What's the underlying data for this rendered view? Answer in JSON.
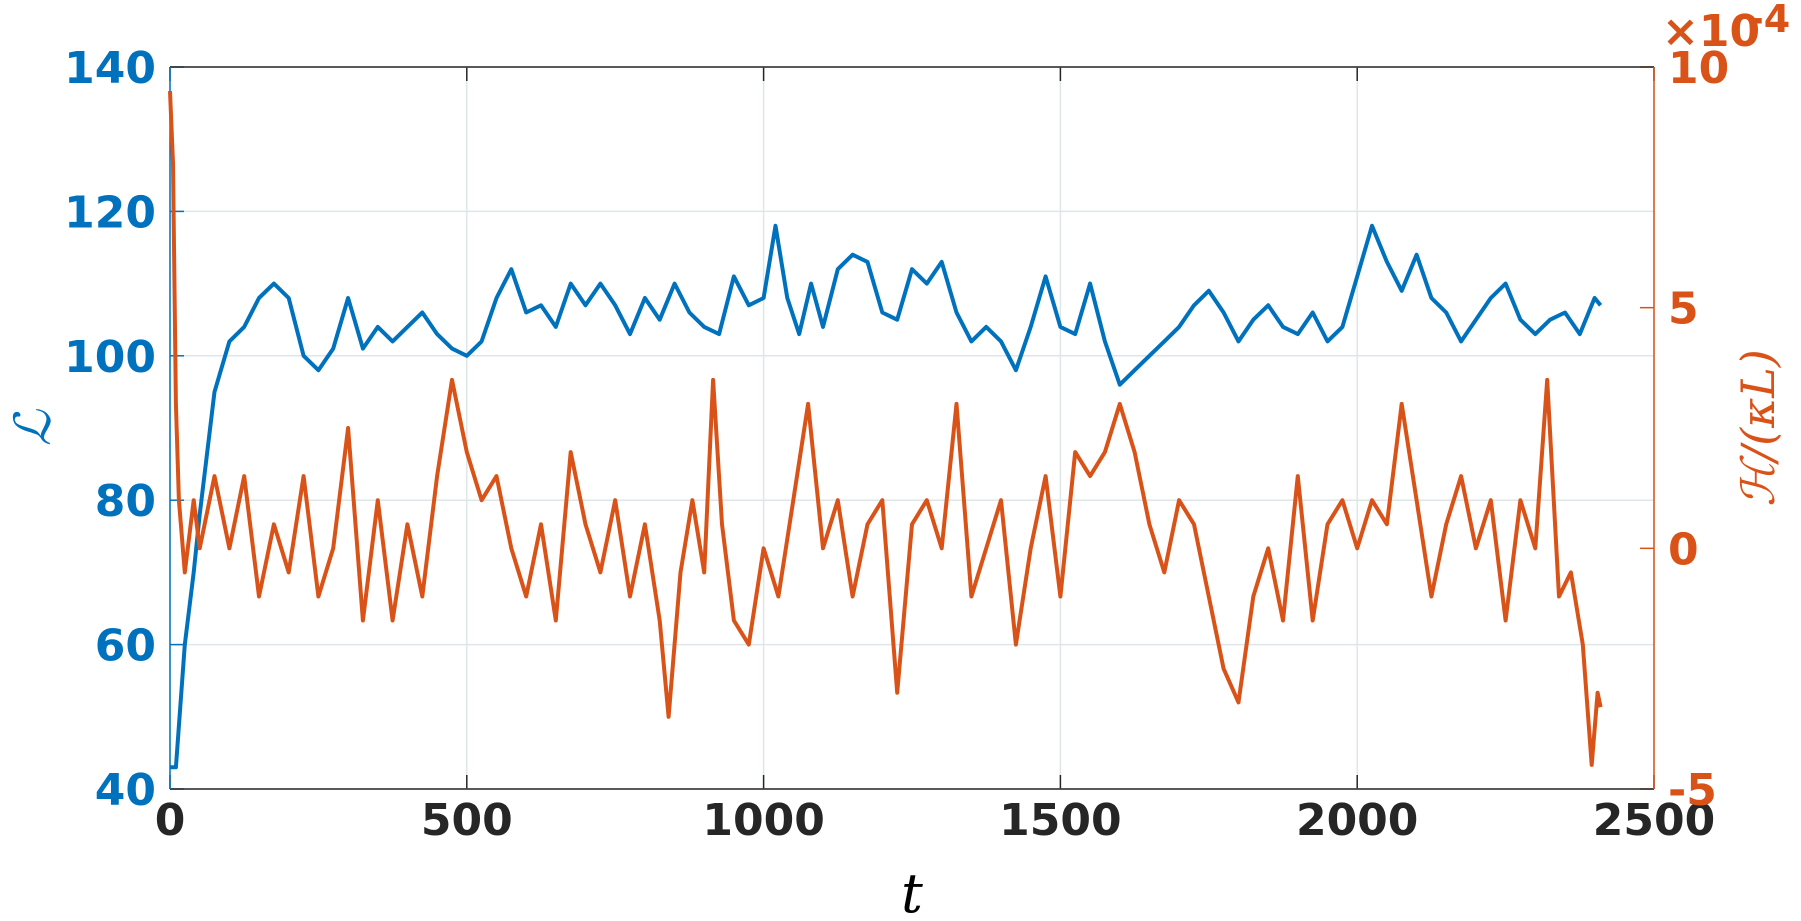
{
  "chart_data": {
    "type": "line",
    "xlabel": "t",
    "ylabel": "ℒ",
    "y2label": "ℋ/(κL)",
    "xlim": [
      0,
      2500
    ],
    "xticks": [
      0,
      500,
      1000,
      1500,
      2000,
      2500
    ],
    "ylim": [
      40,
      140
    ],
    "yticks": [
      40,
      60,
      80,
      100,
      120,
      140
    ],
    "y2lim": [
      -5,
      10
    ],
    "y2ticks": [
      -5,
      0,
      5,
      10
    ],
    "y2_exponent": {
      "base": "×10",
      "power": "-4"
    },
    "grid": true,
    "series": [
      {
        "color": "#0072bd",
        "axis": "y",
        "x": [
          0,
          10,
          25,
          40,
          50,
          75,
          100,
          125,
          150,
          175,
          200,
          225,
          250,
          275,
          300,
          325,
          350,
          375,
          400,
          425,
          450,
          475,
          500,
          525,
          550,
          575,
          600,
          625,
          650,
          675,
          700,
          725,
          750,
          775,
          800,
          825,
          850,
          875,
          900,
          925,
          950,
          975,
          1000,
          1020,
          1040,
          1060,
          1080,
          1100,
          1125,
          1150,
          1175,
          1200,
          1225,
          1250,
          1275,
          1300,
          1325,
          1350,
          1375,
          1400,
          1425,
          1450,
          1475,
          1500,
          1525,
          1550,
          1575,
          1600,
          1625,
          1650,
          1675,
          1700,
          1725,
          1750,
          1775,
          1800,
          1825,
          1850,
          1875,
          1900,
          1925,
          1950,
          1975,
          2000,
          2025,
          2050,
          2075,
          2100,
          2125,
          2150,
          2175,
          2200,
          2225,
          2250,
          2275,
          2300,
          2325,
          2350,
          2375,
          2400,
          2410
        ],
        "values": [
          43,
          43,
          60,
          70,
          78,
          95,
          102,
          104,
          108,
          110,
          108,
          100,
          98,
          101,
          108,
          101,
          104,
          102,
          104,
          106,
          103,
          101,
          100,
          102,
          108,
          112,
          106,
          107,
          104,
          110,
          107,
          110,
          107,
          103,
          108,
          105,
          110,
          106,
          104,
          103,
          111,
          107,
          108,
          118,
          108,
          103,
          110,
          104,
          112,
          114,
          113,
          106,
          105,
          112,
          110,
          113,
          106,
          102,
          104,
          102,
          98,
          104,
          111,
          104,
          103,
          110,
          102,
          96,
          98,
          100,
          102,
          104,
          107,
          109,
          106,
          102,
          105,
          107,
          104,
          103,
          106,
          102,
          104,
          111,
          118,
          113,
          109,
          114,
          108,
          106,
          102,
          105,
          108,
          110,
          105,
          103,
          105,
          106,
          103,
          108,
          107
        ]
      },
      {
        "color": "#d95319",
        "axis": "y2",
        "x": [
          0,
          5,
          10,
          15,
          25,
          40,
          50,
          75,
          100,
          125,
          150,
          175,
          200,
          225,
          250,
          275,
          300,
          325,
          350,
          375,
          400,
          425,
          450,
          475,
          500,
          525,
          550,
          575,
          600,
          625,
          650,
          675,
          700,
          725,
          750,
          775,
          800,
          825,
          840,
          860,
          880,
          900,
          915,
          930,
          950,
          975,
          1000,
          1025,
          1050,
          1075,
          1100,
          1125,
          1150,
          1175,
          1200,
          1225,
          1250,
          1275,
          1300,
          1325,
          1350,
          1375,
          1400,
          1425,
          1450,
          1475,
          1500,
          1525,
          1550,
          1575,
          1600,
          1625,
          1650,
          1675,
          1700,
          1725,
          1750,
          1775,
          1800,
          1825,
          1850,
          1875,
          1900,
          1925,
          1950,
          1975,
          2000,
          2025,
          2050,
          2075,
          2100,
          2125,
          2150,
          2175,
          2200,
          2225,
          2250,
          2275,
          2300,
          2320,
          2340,
          2360,
          2380,
          2395,
          2405,
          2410
        ],
        "values": [
          9.5,
          8,
          3,
          1,
          -0.5,
          1,
          0,
          1.5,
          0,
          1.5,
          -1,
          0.5,
          -0.5,
          1.5,
          -1,
          0,
          2.5,
          -1.5,
          1,
          -1.5,
          0.5,
          -1,
          1.5,
          3.5,
          2,
          1,
          1.5,
          0,
          -1,
          0.5,
          -1.5,
          2,
          0.5,
          -0.5,
          1,
          -1,
          0.5,
          -1.5,
          -3.5,
          -0.5,
          1,
          -0.5,
          3.5,
          0.5,
          -1.5,
          -2,
          0,
          -1,
          1,
          3,
          0,
          1,
          -1,
          0.5,
          1,
          -3,
          0.5,
          1,
          0,
          3,
          -1,
          0,
          1,
          -2,
          0,
          1.5,
          -1,
          2,
          1.5,
          2,
          3,
          2,
          0.5,
          -0.5,
          1,
          0.5,
          -1,
          -2.5,
          -3.2,
          -1,
          0,
          -1.5,
          1.5,
          -1.5,
          0.5,
          1,
          0,
          1,
          0.5,
          3,
          1,
          -1,
          0.5,
          1.5,
          0,
          1,
          -1.5,
          1,
          0,
          3.5,
          -1,
          -0.5,
          -2,
          -4.5,
          -3,
          -3.3
        ]
      }
    ]
  }
}
